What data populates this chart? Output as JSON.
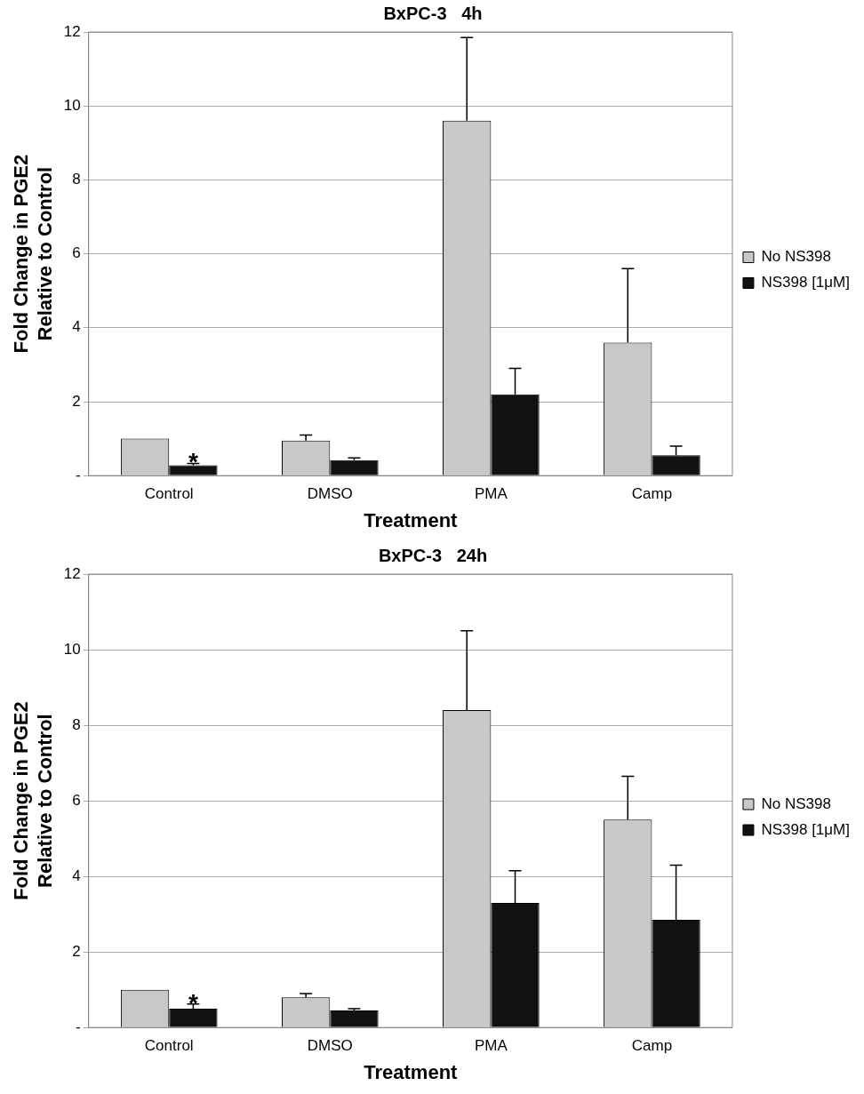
{
  "chart_data": [
    {
      "type": "bar",
      "title": "BxPC-3   4h",
      "xlabel": "Treatment",
      "ylabel": "Fold Change in PGE2\nRelative to Control",
      "categories": [
        "Control",
        "DMSO",
        "PMA",
        "Camp"
      ],
      "series": [
        {
          "name": "No NS398",
          "color": "#c8c8c8",
          "values": [
            1.0,
            0.95,
            9.6,
            3.6
          ],
          "errors": [
            null,
            [
              0.95,
              1.1
            ],
            [
              9.6,
              11.85
            ],
            [
              3.6,
              5.6
            ]
          ]
        },
        {
          "name": "NS398 [1μM]",
          "color": "#111111",
          "values": [
            0.28,
            0.42,
            2.2,
            0.55
          ],
          "errors": [
            [
              0.28,
              0.33
            ],
            [
              0.42,
              0.48
            ],
            [
              2.2,
              2.9
            ],
            [
              0.55,
              0.8
            ]
          ]
        }
      ],
      "ylim": [
        0,
        12
      ],
      "yticks": [
        {
          "value": 0,
          "label": "-"
        },
        2,
        4,
        6,
        8,
        10,
        12
      ],
      "grid": "y",
      "legend": "right",
      "annotations": [
        {
          "text": "*",
          "x": "Control",
          "y": 0.33
        }
      ]
    },
    {
      "type": "bar",
      "title": "BxPC-3   24h",
      "xlabel": "Treatment",
      "ylabel": "Fold Change in PGE2\nRelative to Control",
      "categories": [
        "Control",
        "DMSO",
        "PMA",
        "Camp"
      ],
      "series": [
        {
          "name": "No NS398",
          "color": "#c8c8c8",
          "values": [
            1.0,
            0.8,
            8.4,
            5.5
          ],
          "errors": [
            null,
            [
              0.8,
              0.9
            ],
            [
              8.4,
              10.5
            ],
            [
              5.5,
              6.65
            ]
          ]
        },
        {
          "name": "NS398 [1μM]",
          "color": "#111111",
          "values": [
            0.5,
            0.45,
            3.3,
            2.85
          ],
          "errors": [
            [
              0.5,
              0.62
            ],
            [
              0.45,
              0.5
            ],
            [
              3.3,
              4.15
            ],
            [
              2.85,
              4.3
            ]
          ]
        }
      ],
      "ylim": [
        0,
        12
      ],
      "yticks": [
        {
          "value": 0,
          "label": "-"
        },
        2,
        4,
        6,
        8,
        10,
        12
      ],
      "grid": "y",
      "legend": "right",
      "annotations": [
        {
          "text": "*",
          "x": "Control",
          "y": 0.62
        }
      ]
    }
  ]
}
